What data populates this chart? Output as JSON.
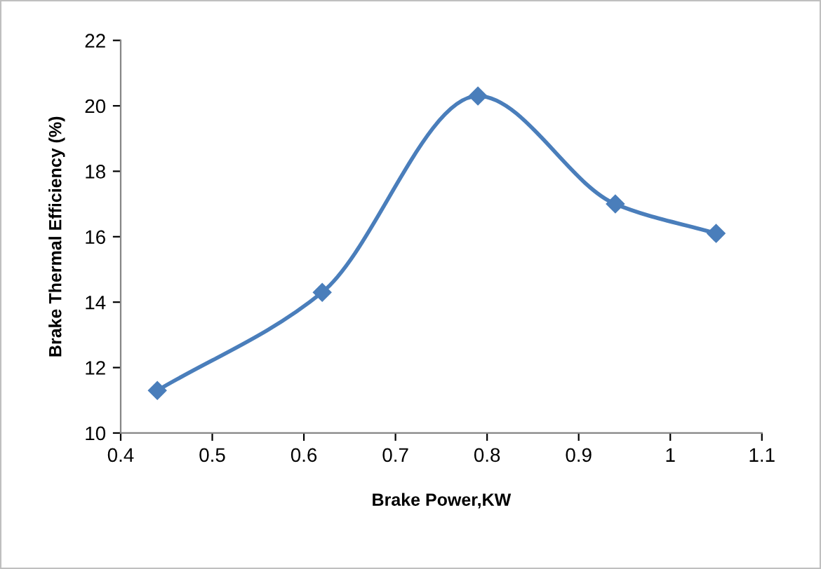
{
  "chart_data": {
    "type": "line",
    "xlabel": "Brake Power,KW",
    "ylabel": "Brake Thermal Efficiency (%)",
    "x": [
      0.44,
      0.62,
      0.79,
      0.94,
      1.05
    ],
    "series": [
      {
        "color": "#4a7ebb",
        "values": [
          11.3,
          14.3,
          20.3,
          17.0,
          16.1
        ]
      }
    ],
    "xlim": [
      0.4,
      1.1
    ],
    "xticks": [
      0.4,
      0.5,
      0.6,
      0.7,
      0.8,
      0.9,
      1,
      1.1
    ],
    "ylim": [
      10,
      22
    ],
    "yticks": [
      10,
      12,
      14,
      16,
      18,
      20,
      22
    ],
    "marker": "diamond",
    "line_style": "solid",
    "grid": false
  }
}
